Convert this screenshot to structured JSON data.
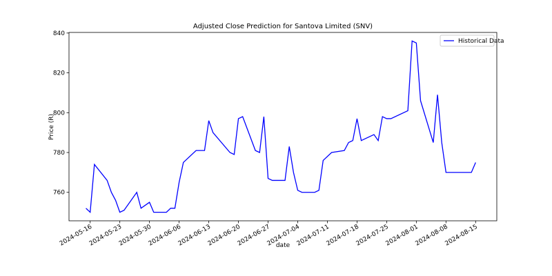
{
  "chart_data": {
    "type": "line",
    "title": "Adjusted Close Prediction for Santova Limited (SNV)",
    "x_label": "date",
    "y_label": "Price (R)",
    "x": [
      "2024-05-15",
      "2024-05-16",
      "2024-05-17",
      "2024-05-20",
      "2024-05-21",
      "2024-05-22",
      "2024-05-23",
      "2024-05-24",
      "2024-05-27",
      "2024-05-28",
      "2024-05-30",
      "2024-05-31",
      "2024-06-03",
      "2024-06-04",
      "2024-06-05",
      "2024-06-06",
      "2024-06-07",
      "2024-06-10",
      "2024-06-12",
      "2024-06-13",
      "2024-06-14",
      "2024-06-18",
      "2024-06-19",
      "2024-06-20",
      "2024-06-21",
      "2024-06-24",
      "2024-06-25",
      "2024-06-26",
      "2024-06-27",
      "2024-06-28",
      "2024-07-01",
      "2024-07-02",
      "2024-07-03",
      "2024-07-04",
      "2024-07-05",
      "2024-07-08",
      "2024-07-09",
      "2024-07-10",
      "2024-07-12",
      "2024-07-15",
      "2024-07-16",
      "2024-07-17",
      "2024-07-18",
      "2024-07-19",
      "2024-07-22",
      "2024-07-23",
      "2024-07-24",
      "2024-07-25",
      "2024-07-26",
      "2024-07-30",
      "2024-07-31",
      "2024-08-01",
      "2024-08-02",
      "2024-08-05",
      "2024-08-06",
      "2024-08-07",
      "2024-08-08",
      "2024-08-12",
      "2024-08-14",
      "2024-08-15"
    ],
    "series": [
      {
        "name": "Historical Data",
        "color": "#0000ff",
        "values": [
          752,
          750,
          774,
          766,
          760,
          756,
          750,
          751,
          760,
          752,
          755,
          750,
          750,
          752,
          752,
          765,
          775,
          781,
          781,
          796,
          790,
          780,
          779,
          797,
          798,
          781,
          780,
          798,
          767,
          766,
          766,
          783,
          770,
          761,
          760,
          760,
          761,
          776,
          780,
          781,
          785,
          786,
          797,
          786,
          789,
          786,
          798,
          797,
          797,
          801,
          836,
          835,
          806,
          785,
          809,
          785,
          770,
          770,
          770,
          775
        ]
      }
    ],
    "xlim": [
      "2024-05-11",
      "2024-08-20"
    ],
    "xticks": [
      "2024-05-16",
      "2024-05-23",
      "2024-05-30",
      "2024-06-06",
      "2024-06-13",
      "2024-06-20",
      "2024-06-27",
      "2024-07-04",
      "2024-07-11",
      "2024-07-18",
      "2024-07-25",
      "2024-08-01",
      "2024-08-08",
      "2024-08-15"
    ],
    "ylim": [
      745.7,
      840.3
    ],
    "yticks": [
      760,
      780,
      800,
      820,
      840
    ],
    "legend": "upper right"
  }
}
